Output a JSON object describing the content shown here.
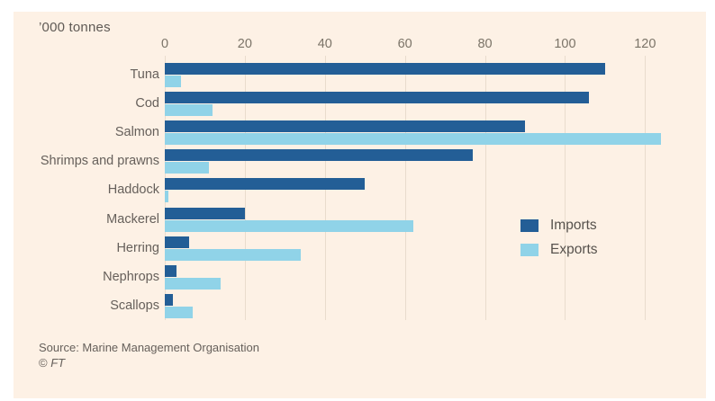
{
  "chart_data": {
    "type": "bar",
    "orientation": "horizontal",
    "unit_label": "’000 tonnes",
    "categories": [
      "Tuna",
      "Cod",
      "Salmon",
      "Shrimps and prawns",
      "Haddock",
      "Mackerel",
      "Herring",
      "Nephrops",
      "Scallops"
    ],
    "series": [
      {
        "name": "Imports",
        "color": "#235e96",
        "values": [
          110,
          106,
          90,
          77,
          50,
          20,
          6,
          3,
          2
        ]
      },
      {
        "name": "Exports",
        "color": "#90d3e8",
        "values": [
          4,
          12,
          124,
          11,
          1,
          62,
          34,
          14,
          7
        ]
      }
    ],
    "x_ticks": [
      0,
      20,
      40,
      60,
      80,
      100,
      120
    ],
    "xlim": [
      0,
      126
    ],
    "grid": true,
    "legend_position": "middle-right"
  },
  "footer": {
    "source": "Source: Marine Management Organisation",
    "copyright_symbol": "©",
    "copyright_name": "FT"
  },
  "colors": {
    "page_background": "#ffffff",
    "card_background": "#fdf1e5",
    "gridline": "#e9dccd",
    "label_text": "#66605b",
    "tick_text": "#7b7468"
  }
}
